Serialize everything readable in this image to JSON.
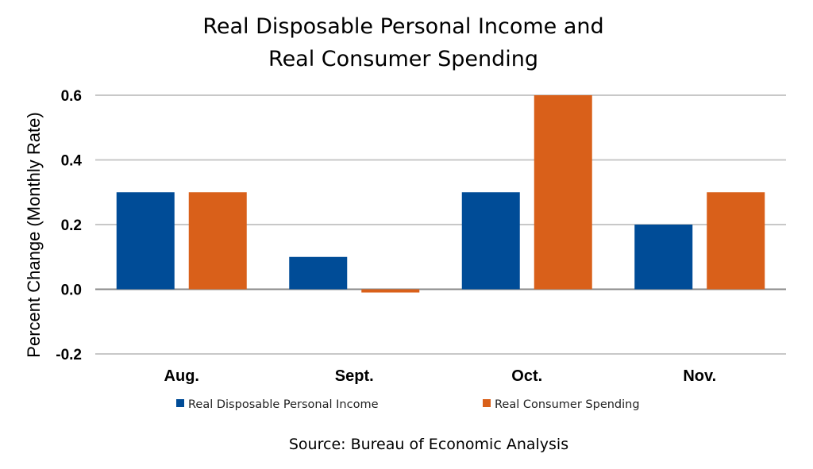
{
  "chart_data": {
    "type": "bar",
    "title": [
      "Real Disposable Personal Income and",
      "Real Consumer Spending"
    ],
    "xlabel": "",
    "ylabel": "Percent Change (Monthly Rate)",
    "categories": [
      "Aug.",
      "Sept.",
      "Oct.",
      "Nov."
    ],
    "series": [
      {
        "name": "Real Disposable Personal Income",
        "values": [
          0.3,
          0.1,
          0.3,
          0.2
        ],
        "color": "#004C97"
      },
      {
        "name": "Real Consumer Spending",
        "values": [
          0.3,
          -0.01,
          0.6,
          0.3
        ],
        "color": "#D9601A"
      }
    ],
    "ylim": [
      -0.2,
      0.6
    ],
    "yticks": [
      "0.6",
      "0.4",
      "0.2",
      "0.0",
      "-0.2"
    ],
    "ytick_values": [
      0.6,
      0.4,
      0.2,
      0.0,
      -0.2
    ],
    "grid": true,
    "legend": "bottom",
    "source": "Source:  Bureau of Economic Analysis"
  }
}
